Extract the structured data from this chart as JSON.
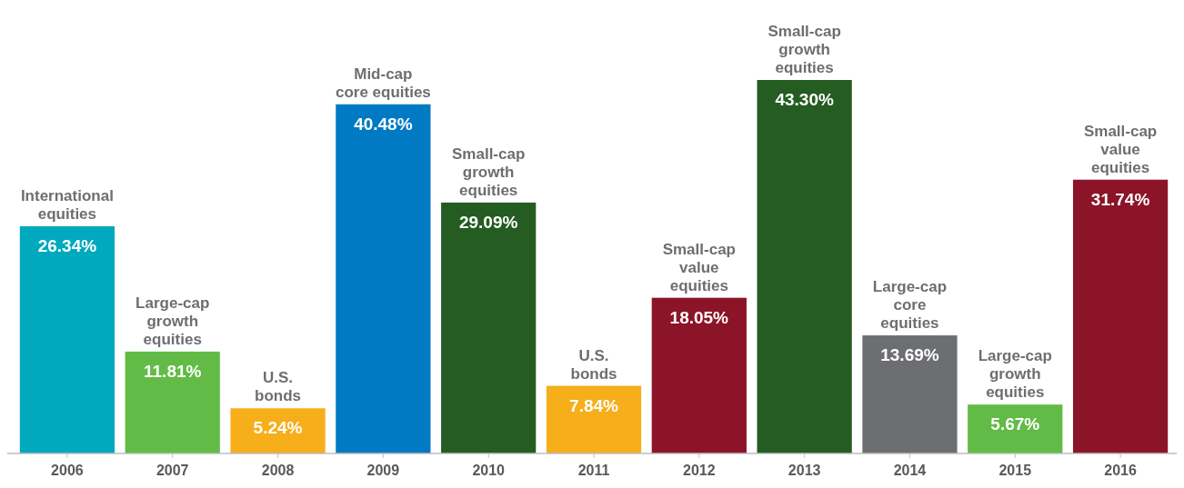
{
  "chart_data": {
    "type": "bar",
    "categories": [
      "2006",
      "2007",
      "2008",
      "2009",
      "2010",
      "2011",
      "2012",
      "2013",
      "2014",
      "2015",
      "2016"
    ],
    "values": [
      26.34,
      11.81,
      5.24,
      40.48,
      29.09,
      7.84,
      18.05,
      43.3,
      13.69,
      5.67,
      31.74
    ],
    "colors": [
      "#00a9bd",
      "#62bb46",
      "#f6ae1b",
      "#007ac2",
      "#245c22",
      "#f6ae1b",
      "#8c1428",
      "#245c22",
      "#6d6e71",
      "#62bb46",
      "#8c1428"
    ],
    "value_labels": [
      "26.34%",
      "11.81%",
      "5.24%",
      "40.48%",
      "29.09%",
      "7.84%",
      "18.05%",
      "43.30%",
      "13.69%",
      "5.67%",
      "31.74%"
    ],
    "annotations": [
      {
        "text": "International\nequities",
        "x": "2006",
        "y": 26.34
      },
      {
        "text": "Large-cap\ngrowth\nequities",
        "x": "2007",
        "y": 11.81
      },
      {
        "text": "U.S.\nbonds",
        "x": "2008",
        "y": 5.24
      },
      {
        "text": "Mid-cap\ncore equities",
        "x": "2009",
        "y": 40.48
      },
      {
        "text": "Small-cap\ngrowth\nequities",
        "x": "2010",
        "y": 29.09
      },
      {
        "text": "U.S.\nbonds",
        "x": "2011",
        "y": 7.84
      },
      {
        "text": "Small-cap\nvalue\nequities",
        "x": "2012",
        "y": 18.05
      },
      {
        "text": "Small-cap\ngrowth\nequities",
        "x": "2013",
        "y": 43.3
      },
      {
        "text": "Large-cap\ncore\nequities",
        "x": "2014",
        "y": 13.69
      },
      {
        "text": "Large-cap\ngrowth\nequities",
        "x": "2015",
        "y": 5.67
      },
      {
        "text": "Small-cap\nvalue\nequities",
        "x": "2016",
        "y": 31.74
      }
    ]
  }
}
